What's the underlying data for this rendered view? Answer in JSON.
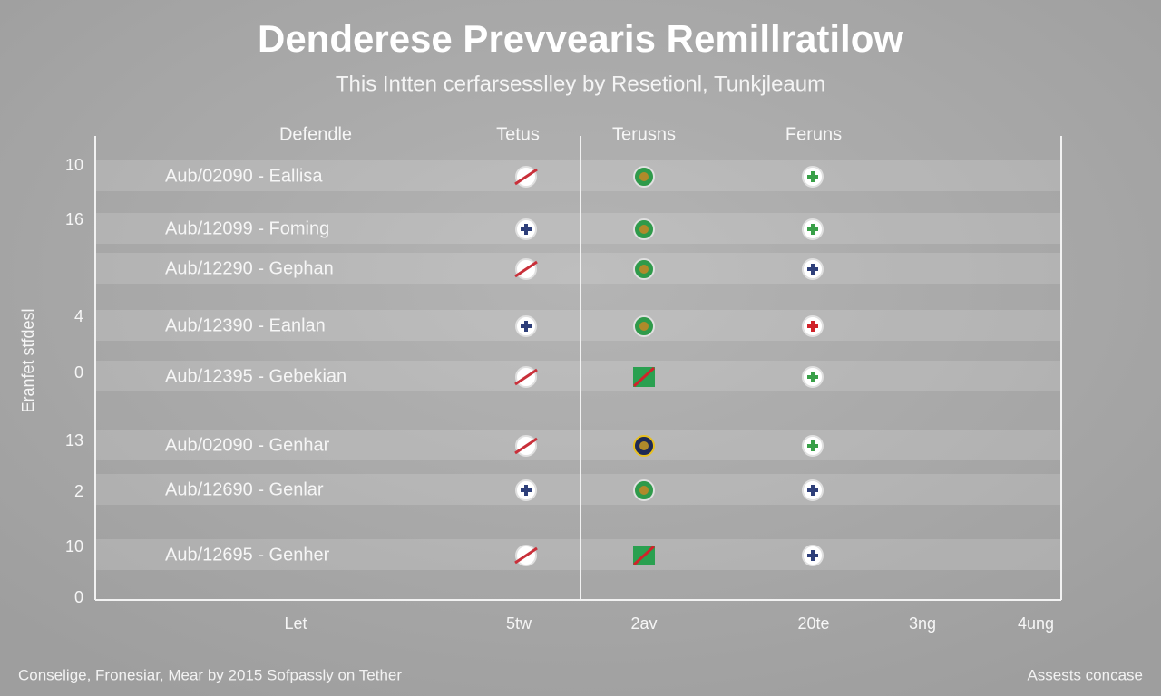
{
  "header": {
    "title": "Denderese Prevvearis Remillratilow",
    "subtitle": "This Intten cerfarsesslley by Resetionl, Tunkjleaum"
  },
  "table": {
    "columns": [
      "Defendle",
      "Tetus",
      "Terusns",
      "Feruns"
    ],
    "rows": [
      "Aub/02090 - Eallisa",
      "Aub/12099 - Foming",
      "Aub/12290 - Gephan",
      "Aub/12390 - Eanlan",
      "Aub/12395 - Gebekian",
      "Aub/02090 - Genhar",
      "Aub/12690 - Genlar",
      "Aub/12695 - Genher"
    ]
  },
  "axis": {
    "title": "Eranfet stfdesl",
    "labels": [
      "10",
      "16",
      "4",
      "0",
      "13",
      "2",
      "10",
      "0"
    ],
    "bottom_labels": [
      "Let",
      "5tw",
      "2av",
      "20te",
      "3ng",
      "4ung"
    ]
  },
  "footer": {
    "left": "Conselige, Fronesiar, Mear by 2015 Sofpassly on Tether",
    "right": "Assests concase"
  }
}
